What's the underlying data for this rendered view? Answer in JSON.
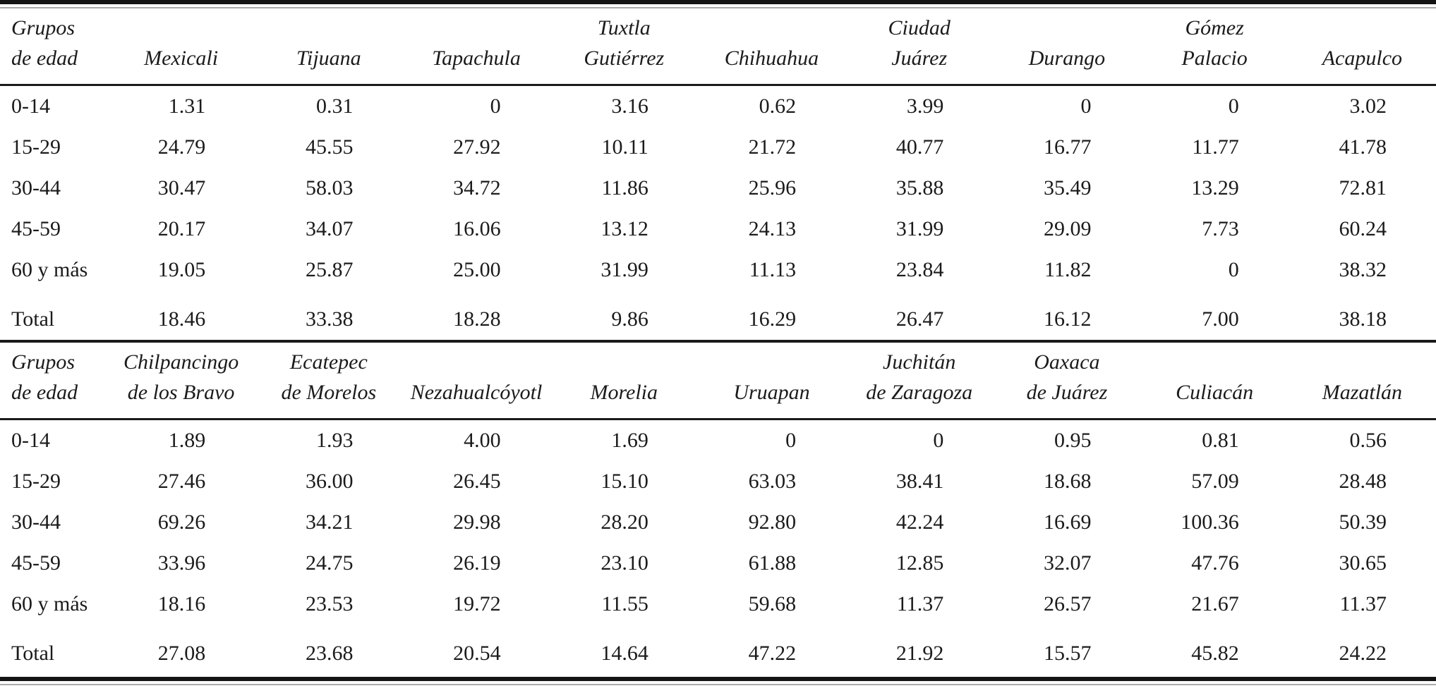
{
  "page": {
    "background_color": "#ffffff",
    "text_color": "#1b1b1b",
    "rule_color": "#141414"
  },
  "tables": [
    {
      "stub_header": {
        "lines": [
          "Grupos",
          "de edad"
        ]
      },
      "columns": [
        {
          "lines": [
            "Mexicali"
          ]
        },
        {
          "lines": [
            "Tijuana"
          ]
        },
        {
          "lines": [
            "Tapachula"
          ]
        },
        {
          "lines": [
            "Tuxtla",
            "Gutiérrez"
          ]
        },
        {
          "lines": [
            "Chihuahua"
          ]
        },
        {
          "lines": [
            "Ciudad",
            "Juárez"
          ]
        },
        {
          "lines": [
            "Durango"
          ]
        },
        {
          "lines": [
            "Gómez",
            "Palacio"
          ]
        },
        {
          "lines": [
            "Acapulco"
          ]
        }
      ],
      "rows": [
        {
          "label": "0-14",
          "total": false,
          "values": [
            "1.31",
            "0.31",
            "0",
            "3.16",
            "0.62",
            "3.99",
            "0",
            "0",
            "3.02"
          ]
        },
        {
          "label": "15-29",
          "total": false,
          "values": [
            "24.79",
            "45.55",
            "27.92",
            "10.11",
            "21.72",
            "40.77",
            "16.77",
            "11.77",
            "41.78"
          ]
        },
        {
          "label": "30-44",
          "total": false,
          "values": [
            "30.47",
            "58.03",
            "34.72",
            "11.86",
            "25.96",
            "35.88",
            "35.49",
            "13.29",
            "72.81"
          ]
        },
        {
          "label": "45-59",
          "total": false,
          "values": [
            "20.17",
            "34.07",
            "16.06",
            "13.12",
            "24.13",
            "31.99",
            "29.09",
            "7.73",
            "60.24"
          ]
        },
        {
          "label": "60 y más",
          "total": false,
          "values": [
            "19.05",
            "25.87",
            "25.00",
            "31.99",
            "11.13",
            "23.84",
            "11.82",
            "0",
            "38.32"
          ]
        },
        {
          "label": "Total",
          "total": true,
          "values": [
            "18.46",
            "33.38",
            "18.28",
            "9.86",
            "16.29",
            "26.47",
            "16.12",
            "7.00",
            "38.18"
          ]
        }
      ]
    },
    {
      "stub_header": {
        "lines": [
          "Grupos",
          "de edad"
        ]
      },
      "columns": [
        {
          "lines": [
            "Chilpancingo",
            "de los Bravo"
          ]
        },
        {
          "lines": [
            "Ecatepec",
            "de Morelos"
          ]
        },
        {
          "lines": [
            "Nezahualcóyotl"
          ]
        },
        {
          "lines": [
            "Morelia"
          ]
        },
        {
          "lines": [
            "Uruapan"
          ]
        },
        {
          "lines": [
            "Juchitán",
            "de Zaragoza"
          ]
        },
        {
          "lines": [
            "Oaxaca",
            "de Juárez"
          ]
        },
        {
          "lines": [
            "Culiacán"
          ]
        },
        {
          "lines": [
            "Mazatlán"
          ]
        }
      ],
      "rows": [
        {
          "label": "0-14",
          "total": false,
          "values": [
            "1.89",
            "1.93",
            "4.00",
            "1.69",
            "0",
            "0",
            "0.95",
            "0.81",
            "0.56"
          ]
        },
        {
          "label": "15-29",
          "total": false,
          "values": [
            "27.46",
            "36.00",
            "26.45",
            "15.10",
            "63.03",
            "38.41",
            "18.68",
            "57.09",
            "28.48"
          ]
        },
        {
          "label": "30-44",
          "total": false,
          "values": [
            "69.26",
            "34.21",
            "29.98",
            "28.20",
            "92.80",
            "42.24",
            "16.69",
            "100.36",
            "50.39"
          ]
        },
        {
          "label": "45-59",
          "total": false,
          "values": [
            "33.96",
            "24.75",
            "26.19",
            "23.10",
            "61.88",
            "12.85",
            "32.07",
            "47.76",
            "30.65"
          ]
        },
        {
          "label": "60 y más",
          "total": false,
          "values": [
            "18.16",
            "23.53",
            "19.72",
            "11.55",
            "59.68",
            "11.37",
            "26.57",
            "21.67",
            "11.37"
          ]
        },
        {
          "label": "Total",
          "total": true,
          "values": [
            "27.08",
            "23.68",
            "20.54",
            "14.64",
            "47.22",
            "21.92",
            "15.57",
            "45.82",
            "24.22"
          ]
        }
      ]
    }
  ]
}
